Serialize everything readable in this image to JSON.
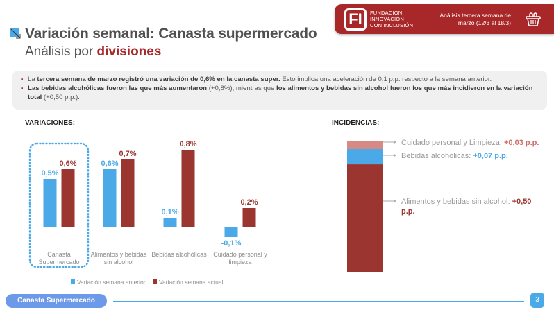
{
  "header": {
    "logo_mark": "FI",
    "logo_lines": [
      "FUNDACIÓN",
      "INNOVACIÓN",
      "CON INCLUSIÓN"
    ],
    "period_line1": "Análisis tercera semana de",
    "period_line2": "marzo (12/3 al 18/3)",
    "icon": "basket-icon",
    "brand_color": "#a8282a"
  },
  "title": {
    "main": "Variación semanal: Canasta supermercado",
    "sub_prefix": "Análisis por ",
    "sub_highlight": "divisiones"
  },
  "summary": {
    "b1_pre": "La ",
    "b1_bold": "tercera semana de marzo registró una variación de 0,6% en la canasta super.",
    "b1_post": " Esto implica una aceleración de 0,1 p.p. respecto a la semana anterior.",
    "b2_bold1": "Las bebidas alcohólicas fueron las que más aumentaron",
    "b2_mid": " (+0,8%), mientras que ",
    "b2_bold2": "los alimentos y bebidas sin alcohol fueron los que más incidieron en la variación total",
    "b2_post": " (+0,50 p.p.)."
  },
  "sections": {
    "variaciones": "VARIACIONES:",
    "incidencias": "INCIDENCIAS:"
  },
  "chart_data": [
    {
      "type": "bar",
      "title": "VARIACIONES:",
      "categories": [
        "Canasta Supermercado",
        "Alimentos y bebidas sin alcohol",
        "Bebidas alcohólicas",
        "Cuidado personal y limpieza"
      ],
      "category_lines": [
        [
          "Canasta",
          "Supermercado"
        ],
        [
          "Alimentos y bebidas",
          "sin alcohol"
        ],
        [
          "Bebidas alcohólicas"
        ],
        [
          "Cuidado personal y",
          "limpieza"
        ]
      ],
      "series": [
        {
          "name": "Variación semana anterior",
          "color": "#4aa9e6",
          "values": [
            0.5,
            0.6,
            0.1,
            -0.1
          ],
          "labels": [
            "0,5%",
            "0,6%",
            "0,1%",
            "-0,1%"
          ]
        },
        {
          "name": "Variación semana actual",
          "color": "#9a3530",
          "values": [
            0.6,
            0.7,
            0.8,
            0.2
          ],
          "labels": [
            "0,6%",
            "0,7%",
            "0,8%",
            "0,2%"
          ]
        }
      ],
      "highlighted_category": "Canasta Supermercado",
      "highlight_color": "#4aa9e6",
      "legend": "bottom",
      "grid": false,
      "ylim": [
        -0.1,
        0.8
      ]
    },
    {
      "type": "bar",
      "subtype": "stacked",
      "title": "INCIDENCIAS:",
      "segments": [
        {
          "name": "Alimentos y bebidas sin alcohol",
          "value": 0.5,
          "label": "Alimentos y bebidas sin alcohol: ",
          "value_label": "+0,50 p.p.",
          "color": "#9a3530"
        },
        {
          "name": "Bebidas alcohólicas",
          "value": 0.07,
          "label": "Bebidas alcohólicas: ",
          "value_label": "+0,07 p.p.",
          "color": "#4aa9e6"
        },
        {
          "name": "Cuidado personal y Limpieza",
          "value": 0.03,
          "label": "Cuidado personal y Limpieza: ",
          "value_label": "+0,03 p.p.",
          "color": "#d58a86"
        }
      ],
      "unit": "p.p."
    }
  ],
  "footer": {
    "section_label": "Canasta Supermercado",
    "page_number": "3"
  }
}
